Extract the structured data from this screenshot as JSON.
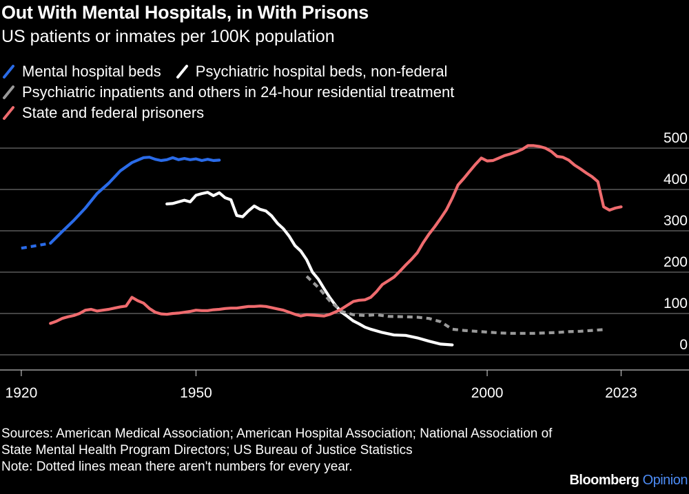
{
  "header": {
    "title": "Out With Mental Hospitals, in With Prisons",
    "subtitle": "US patients or inmates per 100K population"
  },
  "colors": {
    "blue": "#2a6be8",
    "white": "#ffffff",
    "gray": "#9a9a9a",
    "red": "#ef6b6e",
    "grid": "#6e6e6e",
    "brand_accent": "#4d8cf5"
  },
  "chart_data": {
    "type": "line",
    "title": "Out With Mental Hospitals, in With Prisons",
    "subtitle": "US patients or inmates per 100K population",
    "xlabel": "",
    "ylabel": "",
    "xlim": [
      1918,
      2033
    ],
    "ylim": [
      0,
      500
    ],
    "x_ticks": [
      1920,
      1950,
      2000,
      2023
    ],
    "y_ticks": [
      0,
      100,
      200,
      300,
      400,
      500
    ],
    "grid": true,
    "legend_position": "top-left",
    "series": [
      {
        "name": "Mental hospital beds",
        "color": "#2a6be8",
        "dotted_segments": [
          [
            1920,
            1925
          ]
        ],
        "points": [
          [
            1920,
            258
          ],
          [
            1923,
            265
          ],
          [
            1925,
            270
          ],
          [
            1927,
            298
          ],
          [
            1929,
            325
          ],
          [
            1931,
            355
          ],
          [
            1933,
            390
          ],
          [
            1935,
            415
          ],
          [
            1937,
            445
          ],
          [
            1939,
            465
          ],
          [
            1941,
            477
          ],
          [
            1942,
            478
          ],
          [
            1943,
            473
          ],
          [
            1944,
            470
          ],
          [
            1945,
            472
          ],
          [
            1946,
            477
          ],
          [
            1947,
            472
          ],
          [
            1948,
            475
          ],
          [
            1949,
            472
          ],
          [
            1950,
            474
          ],
          [
            1951,
            470
          ],
          [
            1952,
            473
          ],
          [
            1953,
            470
          ],
          [
            1954,
            471
          ]
        ]
      },
      {
        "name": "Psychiatric hospital beds, non-federal",
        "color": "#ffffff",
        "points": [
          [
            1945,
            365
          ],
          [
            1946,
            366
          ],
          [
            1947,
            370
          ],
          [
            1948,
            374
          ],
          [
            1949,
            370
          ],
          [
            1950,
            386
          ],
          [
            1951,
            390
          ],
          [
            1952,
            393
          ],
          [
            1953,
            385
          ],
          [
            1954,
            392
          ],
          [
            1955,
            380
          ],
          [
            1956,
            375
          ],
          [
            1957,
            337
          ],
          [
            1958,
            334
          ],
          [
            1959,
            348
          ],
          [
            1960,
            360
          ],
          [
            1961,
            352
          ],
          [
            1962,
            348
          ],
          [
            1963,
            336
          ],
          [
            1964,
            318
          ],
          [
            1965,
            305
          ],
          [
            1966,
            287
          ],
          [
            1967,
            264
          ],
          [
            1968,
            251
          ],
          [
            1969,
            230
          ],
          [
            1970,
            200
          ],
          [
            1971,
            183
          ],
          [
            1972,
            160
          ],
          [
            1973,
            138
          ],
          [
            1974,
            119
          ],
          [
            1975,
            103
          ],
          [
            1976,
            93
          ],
          [
            1977,
            82
          ],
          [
            1978,
            75
          ],
          [
            1979,
            67
          ],
          [
            1980,
            62
          ],
          [
            1982,
            54
          ],
          [
            1984,
            48
          ],
          [
            1986,
            47
          ],
          [
            1988,
            41
          ],
          [
            1990,
            33
          ],
          [
            1992,
            26
          ],
          [
            1994,
            24
          ]
        ]
      },
      {
        "name": "Psychiatric inpatients and others in 24-hour residential treatment",
        "color": "#9a9a9a",
        "dotted_segments": [
          [
            1969,
            2020
          ]
        ],
        "points": [
          [
            1969,
            190
          ],
          [
            1971,
            163
          ],
          [
            1973,
            130
          ],
          [
            1975,
            105
          ],
          [
            1977,
            97
          ],
          [
            1979,
            95
          ],
          [
            1981,
            97
          ],
          [
            1983,
            93
          ],
          [
            1986,
            92
          ],
          [
            1988,
            91
          ],
          [
            1990,
            88
          ],
          [
            1992,
            80
          ],
          [
            1994,
            62
          ],
          [
            1996,
            59
          ],
          [
            1998,
            57
          ],
          [
            2000,
            55
          ],
          [
            2002,
            53
          ],
          [
            2004,
            52
          ],
          [
            2006,
            52
          ],
          [
            2008,
            52
          ],
          [
            2010,
            53
          ],
          [
            2012,
            54
          ],
          [
            2014,
            56
          ],
          [
            2016,
            57
          ],
          [
            2018,
            59
          ],
          [
            2020,
            61
          ]
        ]
      },
      {
        "name": "State and federal prisoners",
        "color": "#ef6b6e",
        "points": [
          [
            1925,
            76
          ],
          [
            1926,
            81
          ],
          [
            1927,
            88
          ],
          [
            1928,
            92
          ],
          [
            1929,
            95
          ],
          [
            1930,
            100
          ],
          [
            1931,
            108
          ],
          [
            1932,
            110
          ],
          [
            1933,
            106
          ],
          [
            1934,
            108
          ],
          [
            1935,
            110
          ],
          [
            1936,
            113
          ],
          [
            1937,
            116
          ],
          [
            1938,
            118
          ],
          [
            1939,
            139
          ],
          [
            1940,
            131
          ],
          [
            1941,
            125
          ],
          [
            1942,
            112
          ],
          [
            1943,
            103
          ],
          [
            1944,
            99
          ],
          [
            1945,
            98
          ],
          [
            1946,
            100
          ],
          [
            1947,
            101
          ],
          [
            1948,
            103
          ],
          [
            1949,
            105
          ],
          [
            1950,
            108
          ],
          [
            1951,
            107
          ],
          [
            1952,
            107
          ],
          [
            1953,
            109
          ],
          [
            1954,
            110
          ],
          [
            1955,
            112
          ],
          [
            1956,
            113
          ],
          [
            1957,
            113
          ],
          [
            1958,
            115
          ],
          [
            1959,
            117
          ],
          [
            1960,
            117
          ],
          [
            1961,
            118
          ],
          [
            1962,
            117
          ],
          [
            1963,
            114
          ],
          [
            1964,
            111
          ],
          [
            1965,
            108
          ],
          [
            1966,
            103
          ],
          [
            1967,
            98
          ],
          [
            1968,
            94
          ],
          [
            1969,
            97
          ],
          [
            1970,
            96
          ],
          [
            1971,
            95
          ],
          [
            1972,
            94
          ],
          [
            1973,
            98
          ],
          [
            1974,
            104
          ],
          [
            1975,
            111
          ],
          [
            1976,
            120
          ],
          [
            1977,
            129
          ],
          [
            1978,
            132
          ],
          [
            1979,
            133
          ],
          [
            1980,
            139
          ],
          [
            1981,
            153
          ],
          [
            1982,
            170
          ],
          [
            1983,
            179
          ],
          [
            1984,
            188
          ],
          [
            1985,
            202
          ],
          [
            1986,
            217
          ],
          [
            1987,
            231
          ],
          [
            1988,
            247
          ],
          [
            1989,
            271
          ],
          [
            1990,
            292
          ],
          [
            1991,
            310
          ],
          [
            1992,
            330
          ],
          [
            1993,
            351
          ],
          [
            1994,
            379
          ],
          [
            1995,
            411
          ],
          [
            1996,
            427
          ],
          [
            1997,
            444
          ],
          [
            1998,
            461
          ],
          [
            1999,
            476
          ],
          [
            2000,
            469
          ],
          [
            2001,
            470
          ],
          [
            2002,
            476
          ],
          [
            2003,
            482
          ],
          [
            2004,
            486
          ],
          [
            2005,
            491
          ],
          [
            2006,
            497
          ],
          [
            2007,
            506
          ],
          [
            2008,
            506
          ],
          [
            2009,
            504
          ],
          [
            2010,
            500
          ],
          [
            2011,
            492
          ],
          [
            2012,
            480
          ],
          [
            2013,
            478
          ],
          [
            2014,
            471
          ],
          [
            2015,
            459
          ],
          [
            2016,
            450
          ],
          [
            2017,
            440
          ],
          [
            2018,
            431
          ],
          [
            2019,
            419
          ],
          [
            2020,
            358
          ],
          [
            2021,
            350
          ],
          [
            2022,
            355
          ],
          [
            2023,
            358
          ]
        ]
      }
    ]
  },
  "legend": {
    "items": [
      {
        "label": "Mental hospital beds",
        "color": "#2a6be8"
      },
      {
        "label": "Psychiatric hospital beds, non-federal",
        "color": "#ffffff"
      },
      {
        "label": "Psychiatric inpatients and others in 24-hour residential treatment",
        "color": "#9a9a9a"
      },
      {
        "label": "State and federal prisoners",
        "color": "#ef6b6e"
      }
    ]
  },
  "footer": {
    "sources": "Sources: American Medical Association; American Hospital Association; National Association of State Mental Health Program Directors; US Bureau of Justice Statistics",
    "note": "Note: Dotted lines mean there aren't numbers for every year.",
    "brand": "Bloomberg",
    "brand_accent": "Opinion"
  }
}
